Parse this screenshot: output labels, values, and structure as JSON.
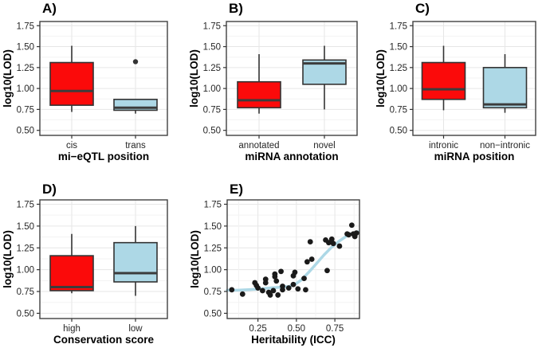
{
  "figure": {
    "background": "#ffffff",
    "colors": {
      "red_fill": "#fb0a0a",
      "blue_fill": "#add8e6",
      "box_border": "#333333",
      "median": "#3c3c3c",
      "outlier": "#333333",
      "point": "#1a1a1a",
      "smooth_line": "#add8e6",
      "grid_major": "#e6e6e6",
      "grid_minor": "#f3f3f3",
      "panel_border": "#404040",
      "tick_mark": "#333333",
      "axis_text": "#262626",
      "title_text": "#000000"
    }
  },
  "chart_data": [
    {
      "id": "A",
      "label": "A)",
      "type": "box",
      "xlabel": "mi−eQTL position",
      "ylabel": "log10(LOD)",
      "categories": [
        "cis",
        "trans"
      ],
      "yticks": [
        0.5,
        0.75,
        1.0,
        1.25,
        1.5,
        1.75
      ],
      "ytick_labels": [
        "0.50",
        "0.75",
        "1.00",
        "1.25",
        "1.50",
        "1.75"
      ],
      "ylim": [
        0.44,
        1.8
      ],
      "grid": true,
      "boxes": [
        {
          "category": "cis",
          "fill": "red",
          "whisker_low": 0.72,
          "q1": 0.8,
          "median": 0.97,
          "q3": 1.31,
          "whisker_high": 1.51,
          "outliers": []
        },
        {
          "category": "trans",
          "fill": "blue",
          "whisker_low": 0.7,
          "q1": 0.74,
          "median": 0.77,
          "q3": 0.87,
          "whisker_high": 0.87,
          "outliers": [
            1.32
          ]
        }
      ]
    },
    {
      "id": "B",
      "label": "B)",
      "type": "box",
      "xlabel": "miRNA annotation",
      "ylabel": "log10(LOD)",
      "categories": [
        "annotated",
        "novel"
      ],
      "yticks": [
        0.5,
        0.75,
        1.0,
        1.25,
        1.5,
        1.75
      ],
      "ytick_labels": [
        "0.50",
        "0.75",
        "1.00",
        "1.25",
        "1.50",
        "1.75"
      ],
      "ylim": [
        0.44,
        1.8
      ],
      "grid": true,
      "boxes": [
        {
          "category": "annotated",
          "fill": "red",
          "whisker_low": 0.7,
          "q1": 0.77,
          "median": 0.86,
          "q3": 1.08,
          "whisker_high": 1.41,
          "outliers": []
        },
        {
          "category": "novel",
          "fill": "blue",
          "whisker_low": 0.75,
          "q1": 1.05,
          "median": 1.3,
          "q3": 1.34,
          "whisker_high": 1.51,
          "outliers": []
        }
      ]
    },
    {
      "id": "C",
      "label": "C)",
      "type": "box",
      "xlabel": "miRNA position",
      "ylabel": "log10(LOD)",
      "categories": [
        "intronic",
        "non−intronic"
      ],
      "yticks": [
        0.5,
        0.75,
        1.0,
        1.25,
        1.5,
        1.75
      ],
      "ytick_labels": [
        "0.50",
        "0.75",
        "1.00",
        "1.25",
        "1.50",
        "1.75"
      ],
      "ylim": [
        0.44,
        1.8
      ],
      "grid": true,
      "boxes": [
        {
          "category": "intronic",
          "fill": "red",
          "whisker_low": 0.74,
          "q1": 0.87,
          "median": 0.99,
          "q3": 1.31,
          "whisker_high": 1.51,
          "outliers": []
        },
        {
          "category": "non−intronic",
          "fill": "blue",
          "whisker_low": 0.71,
          "q1": 0.77,
          "median": 0.81,
          "q3": 1.25,
          "whisker_high": 1.41,
          "outliers": []
        }
      ]
    },
    {
      "id": "D",
      "label": "D)",
      "type": "box",
      "xlabel": "Conservation score",
      "ylabel": "log10(LOD)",
      "categories": [
        "high",
        "low"
      ],
      "yticks": [
        0.5,
        0.75,
        1.0,
        1.25,
        1.5,
        1.75
      ],
      "ytick_labels": [
        "0.50",
        "0.75",
        "1.00",
        "1.25",
        "1.50",
        "1.75"
      ],
      "ylim": [
        0.44,
        1.8
      ],
      "grid": true,
      "boxes": [
        {
          "category": "high",
          "fill": "red",
          "whisker_low": 0.73,
          "q1": 0.76,
          "median": 0.8,
          "q3": 1.16,
          "whisker_high": 1.41,
          "outliers": []
        },
        {
          "category": "low",
          "fill": "blue",
          "whisker_low": 0.7,
          "q1": 0.86,
          "median": 0.96,
          "q3": 1.31,
          "whisker_high": 1.5,
          "outliers": []
        }
      ]
    },
    {
      "id": "E",
      "label": "E)",
      "type": "scatter",
      "xlabel": "Heritability (ICC)",
      "ylabel": "log10(LOD)",
      "xticks": [
        0.25,
        0.5,
        0.75
      ],
      "xtick_labels": [
        "0.25",
        "0.50",
        "0.75"
      ],
      "xlim": [
        0.05,
        0.91
      ],
      "yticks": [
        0.5,
        0.75,
        1.0,
        1.25,
        1.5,
        1.75
      ],
      "ytick_labels": [
        "0.50",
        "0.75",
        "1.00",
        "1.25",
        "1.50",
        "1.75"
      ],
      "ylim": [
        0.44,
        1.8
      ],
      "grid": true,
      "points": [
        [
          0.08,
          0.77
        ],
        [
          0.15,
          0.72
        ],
        [
          0.23,
          0.85
        ],
        [
          0.24,
          0.82
        ],
        [
          0.25,
          0.79
        ],
        [
          0.28,
          0.76
        ],
        [
          0.3,
          0.89
        ],
        [
          0.3,
          0.85
        ],
        [
          0.32,
          0.74
        ],
        [
          0.33,
          0.71
        ],
        [
          0.35,
          0.76
        ],
        [
          0.36,
          0.95
        ],
        [
          0.36,
          0.92
        ],
        [
          0.37,
          0.87
        ],
        [
          0.38,
          0.71
        ],
        [
          0.4,
          0.98
        ],
        [
          0.41,
          0.81
        ],
        [
          0.41,
          0.77
        ],
        [
          0.45,
          0.79
        ],
        [
          0.48,
          0.93
        ],
        [
          0.48,
          0.83
        ],
        [
          0.49,
          0.97
        ],
        [
          0.51,
          0.78
        ],
        [
          0.55,
          0.9
        ],
        [
          0.56,
          0.77
        ],
        [
          0.57,
          1.09
        ],
        [
          0.59,
          1.32
        ],
        [
          0.6,
          1.12
        ],
        [
          0.69,
          1.34
        ],
        [
          0.7,
          0.99
        ],
        [
          0.71,
          1.31
        ],
        [
          0.73,
          1.35
        ],
        [
          0.74,
          1.3
        ],
        [
          0.78,
          1.27
        ],
        [
          0.83,
          1.41
        ],
        [
          0.84,
          1.4
        ],
        [
          0.86,
          1.51
        ],
        [
          0.87,
          1.41
        ],
        [
          0.88,
          1.38
        ],
        [
          0.89,
          1.42
        ]
      ],
      "smooth_line": [
        [
          0.05,
          0.765
        ],
        [
          0.12,
          0.765
        ],
        [
          0.2,
          0.772
        ],
        [
          0.28,
          0.782
        ],
        [
          0.34,
          0.792
        ],
        [
          0.4,
          0.8
        ],
        [
          0.45,
          0.807
        ],
        [
          0.49,
          0.83
        ],
        [
          0.53,
          0.88
        ],
        [
          0.58,
          0.97
        ],
        [
          0.63,
          1.07
        ],
        [
          0.68,
          1.17
        ],
        [
          0.73,
          1.26
        ],
        [
          0.78,
          1.33
        ],
        [
          0.83,
          1.39
        ],
        [
          0.87,
          1.42
        ],
        [
          0.9,
          1.435
        ]
      ]
    }
  ]
}
